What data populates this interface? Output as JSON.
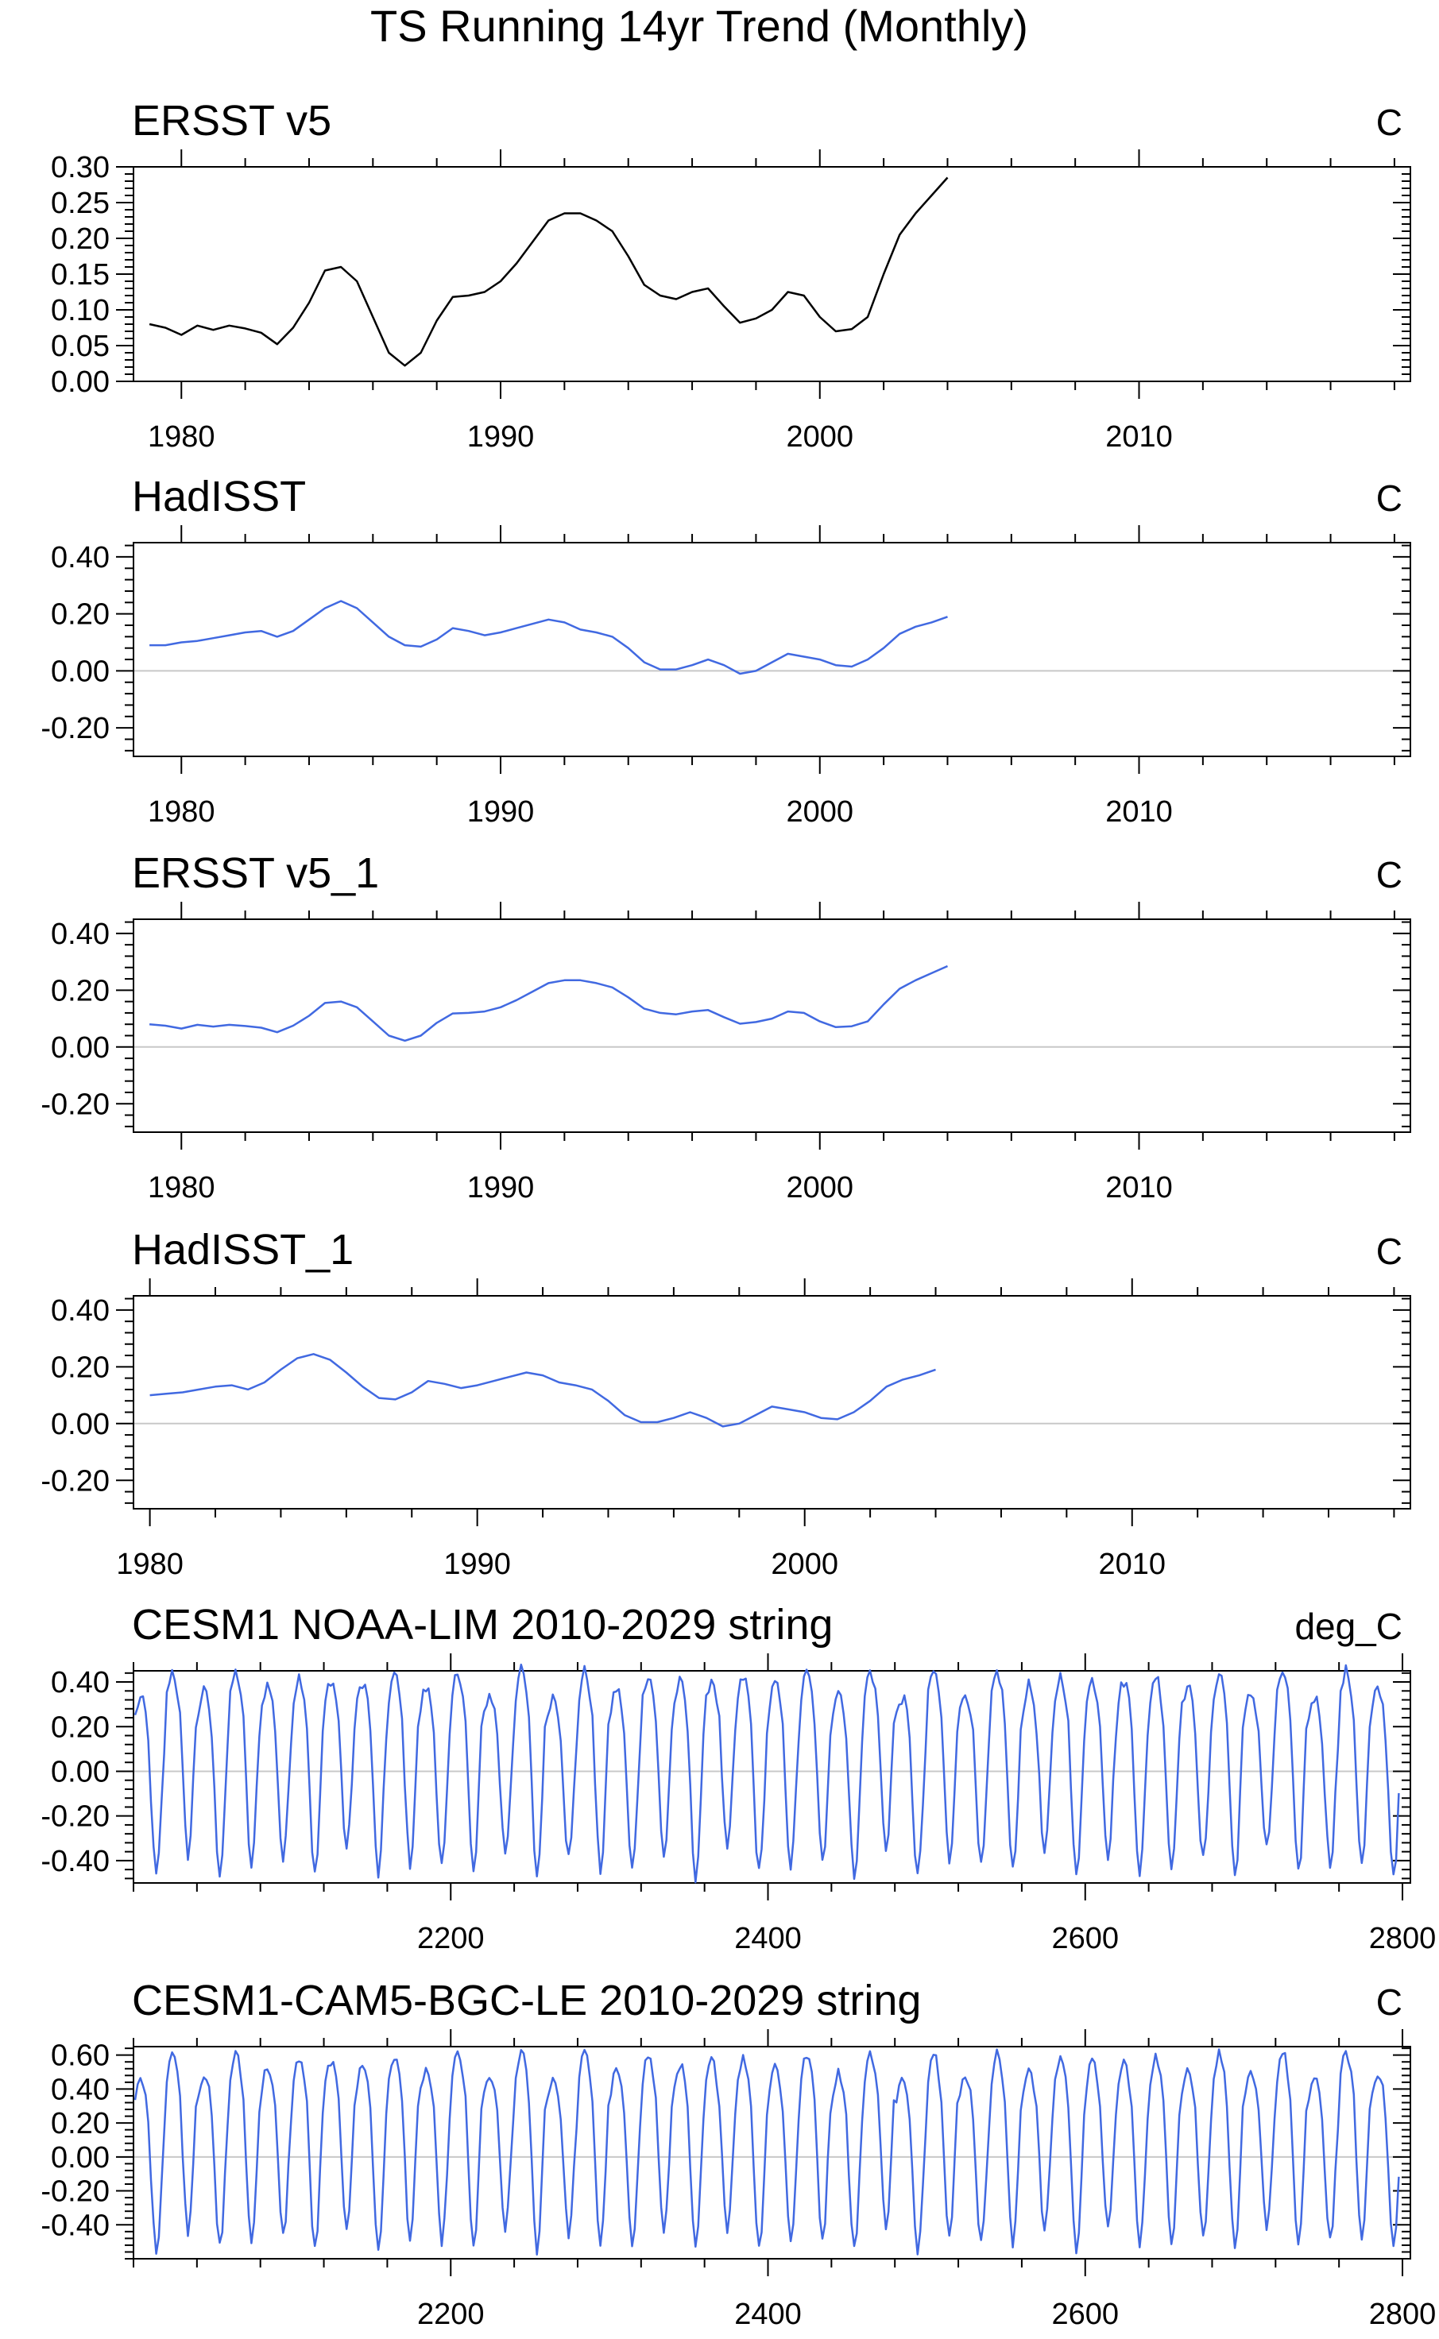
{
  "title": "TS Running 14yr Trend (Monthly)",
  "colors": {
    "frame": "#000000",
    "zero_line": "#c8c8c8",
    "black_series": "#000000",
    "blue_series": "#4169e1"
  },
  "chart_data": [
    {
      "type": "line",
      "title": "ERSST v5",
      "units": "C",
      "line_color": "#000000",
      "xlim": [
        1978.5,
        2018.5
      ],
      "xticks": [
        1980,
        1990,
        2000,
        2010
      ],
      "xtick_labels": [
        "1980",
        "1990",
        "2000",
        "2010"
      ],
      "ylim": [
        0.0,
        0.3
      ],
      "yticks": [
        0.0,
        0.05,
        0.1,
        0.15,
        0.2,
        0.25,
        0.3
      ],
      "ytick_labels": [
        "0.00",
        "0.05",
        "0.10",
        "0.15",
        "0.20",
        "0.25",
        "0.30"
      ],
      "zero_line": false,
      "x": [
        1979.0,
        1979.5,
        1980.0,
        1980.5,
        1981.0,
        1981.5,
        1982.0,
        1982.5,
        1983.0,
        1983.5,
        1984.0,
        1984.5,
        1985.0,
        1985.5,
        1986.0,
        1986.5,
        1987.0,
        1987.5,
        1988.0,
        1988.5,
        1989.0,
        1989.5,
        1990.0,
        1990.5,
        1991.0,
        1991.5,
        1992.0,
        1992.5,
        1993.0,
        1993.5,
        1994.0,
        1994.5,
        1995.0,
        1995.5,
        1996.0,
        1996.5,
        1997.0,
        1997.5,
        1998.0,
        1998.5,
        1999.0,
        1999.5,
        2000.0,
        2000.5,
        2001.0,
        2001.5,
        2002.0,
        2002.5,
        2003.0,
        2003.5,
        2004.0
      ],
      "values": [
        0.08,
        0.075,
        0.065,
        0.078,
        0.072,
        0.078,
        0.074,
        0.068,
        0.052,
        0.075,
        0.11,
        0.155,
        0.16,
        0.14,
        0.09,
        0.04,
        0.022,
        0.04,
        0.085,
        0.118,
        0.12,
        0.125,
        0.14,
        0.165,
        0.195,
        0.225,
        0.235,
        0.235,
        0.225,
        0.21,
        0.175,
        0.135,
        0.12,
        0.115,
        0.125,
        0.13,
        0.105,
        0.082,
        0.088,
        0.1,
        0.125,
        0.12,
        0.09,
        0.07,
        0.073,
        0.09,
        0.15,
        0.205,
        0.235,
        0.26,
        0.285
      ]
    },
    {
      "type": "line",
      "title": "HadISST",
      "units": "C",
      "line_color": "#4169e1",
      "xlim": [
        1978.5,
        2018.5
      ],
      "xticks": [
        1980,
        1990,
        2000,
        2010
      ],
      "xtick_labels": [
        "1980",
        "1990",
        "2000",
        "2010"
      ],
      "ylim": [
        -0.3,
        0.45
      ],
      "yticks": [
        -0.2,
        0.0,
        0.2,
        0.4
      ],
      "ytick_labels": [
        "-0.20",
        "0.00",
        "0.20",
        "0.40"
      ],
      "zero_line": true,
      "x": [
        1979.0,
        1979.5,
        1980.0,
        1980.5,
        1981.0,
        1981.5,
        1982.0,
        1982.5,
        1983.0,
        1983.5,
        1984.0,
        1984.5,
        1985.0,
        1985.5,
        1986.0,
        1986.5,
        1987.0,
        1987.5,
        1988.0,
        1988.5,
        1989.0,
        1989.5,
        1990.0,
        1990.5,
        1991.0,
        1991.5,
        1992.0,
        1992.5,
        1993.0,
        1993.5,
        1994.0,
        1994.5,
        1995.0,
        1995.5,
        1996.0,
        1996.5,
        1997.0,
        1997.5,
        1998.0,
        1998.5,
        1999.0,
        1999.5,
        2000.0,
        2000.5,
        2001.0,
        2001.5,
        2002.0,
        2002.5,
        2003.0,
        2003.5,
        2004.0
      ],
      "values": [
        0.09,
        0.09,
        0.1,
        0.105,
        0.115,
        0.125,
        0.135,
        0.14,
        0.12,
        0.14,
        0.18,
        0.22,
        0.245,
        0.22,
        0.17,
        0.12,
        0.09,
        0.085,
        0.11,
        0.15,
        0.14,
        0.125,
        0.135,
        0.15,
        0.165,
        0.18,
        0.17,
        0.145,
        0.135,
        0.12,
        0.08,
        0.03,
        0.005,
        0.005,
        0.02,
        0.04,
        0.02,
        -0.01,
        0.0,
        0.03,
        0.06,
        0.05,
        0.04,
        0.02,
        0.015,
        0.04,
        0.08,
        0.13,
        0.155,
        0.17,
        0.19
      ]
    },
    {
      "type": "line",
      "title": "ERSST v5_1",
      "units": "C",
      "line_color": "#4169e1",
      "xlim": [
        1978.5,
        2018.5
      ],
      "xticks": [
        1980,
        1990,
        2000,
        2010
      ],
      "xtick_labels": [
        "1980",
        "1990",
        "2000",
        "2010"
      ],
      "ylim": [
        -0.3,
        0.45
      ],
      "yticks": [
        -0.2,
        0.0,
        0.2,
        0.4
      ],
      "ytick_labels": [
        "-0.20",
        "0.00",
        "0.20",
        "0.40"
      ],
      "zero_line": true,
      "x": [
        1979.0,
        1979.5,
        1980.0,
        1980.5,
        1981.0,
        1981.5,
        1982.0,
        1982.5,
        1983.0,
        1983.5,
        1984.0,
        1984.5,
        1985.0,
        1985.5,
        1986.0,
        1986.5,
        1987.0,
        1987.5,
        1988.0,
        1988.5,
        1989.0,
        1989.5,
        1990.0,
        1990.5,
        1991.0,
        1991.5,
        1992.0,
        1992.5,
        1993.0,
        1993.5,
        1994.0,
        1994.5,
        1995.0,
        1995.5,
        1996.0,
        1996.5,
        1997.0,
        1997.5,
        1998.0,
        1998.5,
        1999.0,
        1999.5,
        2000.0,
        2000.5,
        2001.0,
        2001.5,
        2002.0,
        2002.5,
        2003.0,
        2003.5,
        2004.0
      ],
      "values": [
        0.08,
        0.075,
        0.065,
        0.078,
        0.072,
        0.078,
        0.074,
        0.068,
        0.052,
        0.075,
        0.11,
        0.155,
        0.16,
        0.14,
        0.09,
        0.04,
        0.022,
        0.04,
        0.085,
        0.118,
        0.12,
        0.125,
        0.14,
        0.165,
        0.195,
        0.225,
        0.235,
        0.235,
        0.225,
        0.21,
        0.175,
        0.135,
        0.12,
        0.115,
        0.125,
        0.13,
        0.105,
        0.082,
        0.088,
        0.1,
        0.125,
        0.12,
        0.09,
        0.07,
        0.073,
        0.09,
        0.15,
        0.205,
        0.235,
        0.26,
        0.285
      ]
    },
    {
      "type": "line",
      "title": "HadISST_1",
      "units": "C",
      "line_color": "#4169e1",
      "xlim": [
        1979.5,
        2018.5
      ],
      "xticks": [
        1980,
        1990,
        2000,
        2010
      ],
      "xtick_labels": [
        "1980",
        "1990",
        "2000",
        "2010"
      ],
      "ylim": [
        -0.3,
        0.45
      ],
      "yticks": [
        -0.2,
        0.0,
        0.2,
        0.4
      ],
      "ytick_labels": [
        "-0.20",
        "0.00",
        "0.20",
        "0.40"
      ],
      "zero_line": true,
      "x": [
        1980.0,
        1980.5,
        1981.0,
        1981.5,
        1982.0,
        1982.5,
        1983.0,
        1983.5,
        1984.0,
        1984.5,
        1985.0,
        1985.5,
        1986.0,
        1986.5,
        1987.0,
        1987.5,
        1988.0,
        1988.5,
        1989.0,
        1989.5,
        1990.0,
        1990.5,
        1991.0,
        1991.5,
        1992.0,
        1992.5,
        1993.0,
        1993.5,
        1994.0,
        1994.5,
        1995.0,
        1995.5,
        1996.0,
        1996.5,
        1997.0,
        1997.5,
        1998.0,
        1998.5,
        1999.0,
        1999.5,
        2000.0,
        2000.5,
        2001.0,
        2001.5,
        2002.0,
        2002.5,
        2003.0,
        2003.5,
        2004.0
      ],
      "values": [
        0.1,
        0.105,
        0.11,
        0.12,
        0.13,
        0.135,
        0.12,
        0.145,
        0.19,
        0.23,
        0.245,
        0.225,
        0.18,
        0.13,
        0.09,
        0.085,
        0.11,
        0.15,
        0.14,
        0.125,
        0.135,
        0.15,
        0.165,
        0.18,
        0.17,
        0.145,
        0.135,
        0.12,
        0.08,
        0.03,
        0.005,
        0.005,
        0.02,
        0.04,
        0.02,
        -0.01,
        0.0,
        0.03,
        0.06,
        0.05,
        0.04,
        0.02,
        0.015,
        0.04,
        0.08,
        0.13,
        0.155,
        0.17,
        0.19
      ]
    },
    {
      "type": "line",
      "title": "CESM1 NOAA-LIM 2010-2029 string",
      "units": "deg_C",
      "line_color": "#4169e1",
      "xlim": [
        2000,
        2805
      ],
      "xticks": [
        2200,
        2400,
        2600,
        2800
      ],
      "xtick_labels": [
        "2200",
        "2400",
        "2600",
        "2800"
      ],
      "ylim": [
        -0.5,
        0.45
      ],
      "yticks": [
        -0.4,
        -0.2,
        0.0,
        0.2,
        0.4
      ],
      "ytick_labels": [
        "-0.40",
        "-0.20",
        "0.00",
        "0.20",
        "0.40"
      ],
      "zero_line": true,
      "seasonal_cycle": {
        "x_start": 2001,
        "x_end": 2797,
        "period": 20,
        "peak_max_approx": 0.45,
        "trough_min_approx": -0.47
      }
    },
    {
      "type": "line",
      "title": "CESM1-CAM5-BGC-LE 2010-2029 string",
      "units": "C",
      "line_color": "#4169e1",
      "xlim": [
        2000,
        2805
      ],
      "xticks": [
        2200,
        2400,
        2600,
        2800
      ],
      "xtick_labels": [
        "2200",
        "2400",
        "2600",
        "2800"
      ],
      "ylim": [
        -0.6,
        0.65
      ],
      "yticks": [
        -0.4,
        -0.2,
        0.0,
        0.2,
        0.4,
        0.6
      ],
      "ytick_labels": [
        "-0.40",
        "-0.20",
        "0.00",
        "0.20",
        "0.40",
        "0.60"
      ],
      "zero_line": true,
      "seasonal_cycle": {
        "x_start": 2001,
        "x_end": 2797,
        "period": 20,
        "peak_max_approx": 0.62,
        "trough_min_approx": -0.55
      }
    }
  ]
}
